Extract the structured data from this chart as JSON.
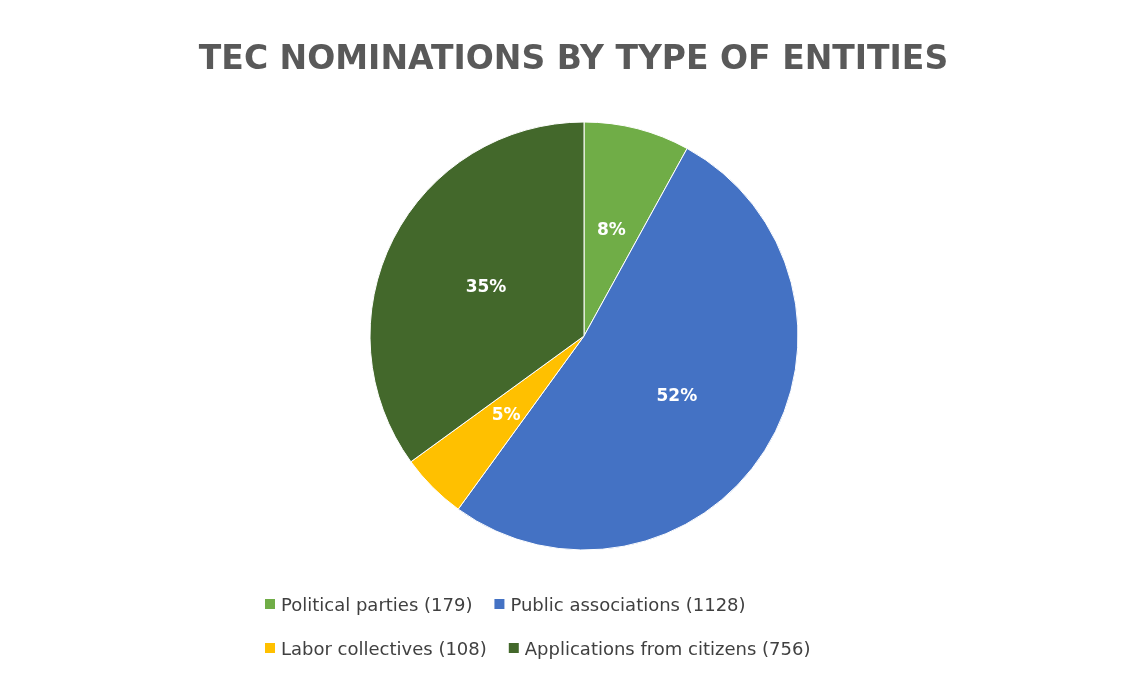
{
  "chart_data": {
    "type": "pie",
    "title": "TEC NOMINATIONS BY TYPE OF ENTITIES",
    "categories": [
      "Political parties (179)",
      "Public associations (1128)",
      "Labor collectives (108)",
      "Applications from citizens (756)"
    ],
    "values": [
      8,
      52,
      5,
      35
    ],
    "colors": [
      "#70ad47",
      "#4472c4",
      "#ffc000",
      "#43682b"
    ],
    "value_labels": [
      "8%",
      "52%",
      "5%",
      "35%"
    ],
    "legend": "bottom"
  }
}
